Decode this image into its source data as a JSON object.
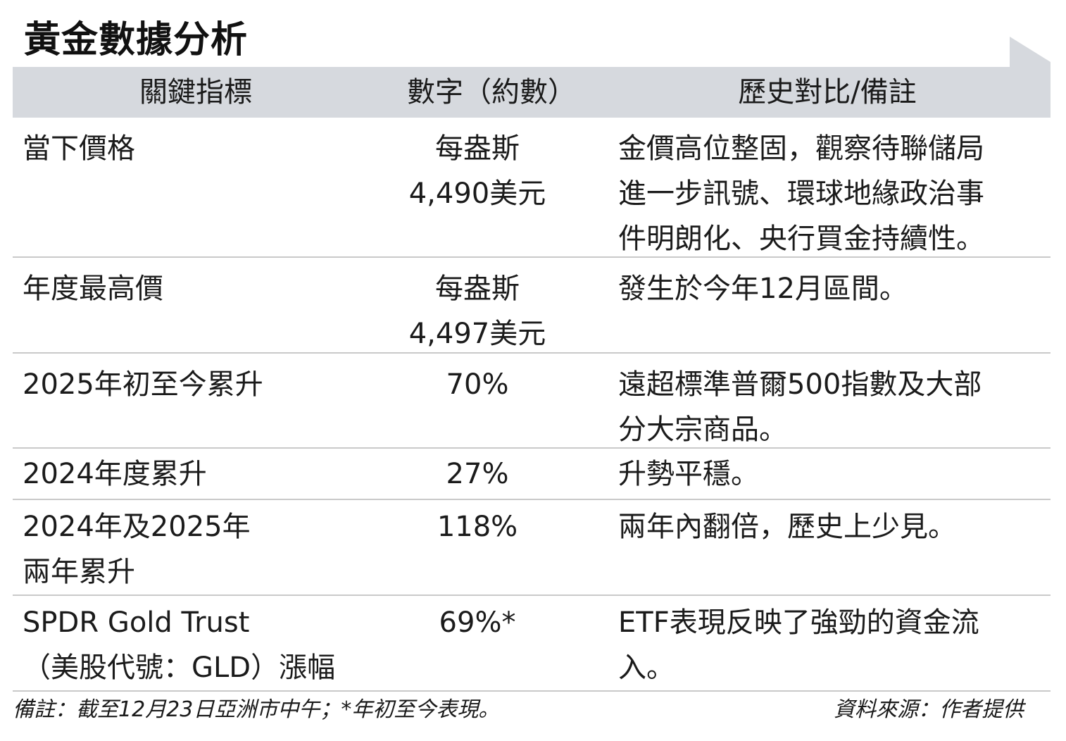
{
  "title": "黃金數據分析",
  "colors": {
    "header_band": "#d6d9de",
    "divider": "#c9c9c9",
    "text": "#1b1b1b"
  },
  "headers": [
    "關鍵指標",
    "數字（約數）",
    "歷史對比/備註"
  ],
  "rows": [
    {
      "indicator": "當下價格",
      "value": "每盎斯\n4,490美元",
      "note": "金價高位整固，觀察待聯儲局\n進一步訊號、環球地緣政治事\n件明朗化、央行買金持續性。"
    },
    {
      "indicator": "年度最高價",
      "value": "每盎斯\n4,497美元",
      "note": "發生於今年12月區間。"
    },
    {
      "indicator": "2025年初至今累升",
      "value": "70%",
      "note": "遠超標準普爾500指數及大部\n分大宗商品。"
    },
    {
      "indicator": "2024年度累升",
      "value": "27%",
      "note": "升勢平穩。"
    },
    {
      "indicator": "2024年及2025年\n兩年累升",
      "value": "118%",
      "note": "兩年內翻倍，歷史上少見。"
    },
    {
      "indicator": "SPDR Gold Trust\n（美股代號：GLD）漲幅",
      "value": "69%*",
      "note": "ETF表現反映了強勁的資金流\n入。"
    }
  ],
  "footnote": "備註：截至12月23日亞洲市中午；*年初至今表現。",
  "source": "資料來源：作者提供"
}
